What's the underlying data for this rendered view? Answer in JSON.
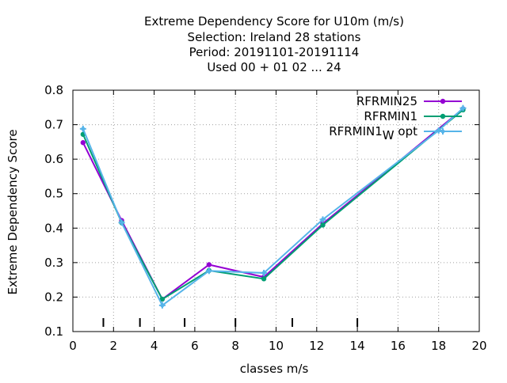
{
  "chart_data": {
    "type": "line",
    "title_lines": [
      "Extreme Dependency Score  for U10m (m/s)",
      "Selection: Ireland      28 stations",
      "Period: 20191101-20191114",
      "Used  00 + 01 02 ... 24"
    ],
    "xlabel": "classes m/s",
    "ylabel": "Extreme Dependency Score",
    "xlim": [
      0,
      20
    ],
    "ylim": [
      0.1,
      0.8
    ],
    "x_ticks": [
      0,
      2,
      4,
      6,
      8,
      10,
      12,
      14,
      16,
      18,
      20
    ],
    "y_ticks": [
      0.1,
      0.2,
      0.3,
      0.4,
      0.5,
      0.6,
      0.7,
      0.8
    ],
    "grid": true,
    "legend_position": "top-right",
    "class_boundary_marks": [
      1.5,
      3.3,
      5.5,
      8,
      10.8,
      14
    ],
    "series": [
      {
        "name": "RFRMIN25",
        "color": "#9400d3",
        "marker": "circle",
        "x": [
          0.5,
          2.4,
          4.4,
          6.7,
          9.4,
          12.3,
          19.2
        ],
        "y": [
          0.648,
          0.422,
          0.194,
          0.294,
          0.258,
          0.413,
          0.746
        ]
      },
      {
        "name": "RFRMIN1",
        "color": "#009e73",
        "marker": "circle",
        "x": [
          0.5,
          2.4,
          4.4,
          6.7,
          9.4,
          12.3,
          19.2
        ],
        "y": [
          0.672,
          0.416,
          0.194,
          0.277,
          0.253,
          0.409,
          0.743
        ]
      },
      {
        "name": "RFRMIN1",
        "name_subscript": "W",
        "name_suffix": "opt",
        "color": "#56b4e9",
        "marker": "cross",
        "x": [
          0.5,
          2.4,
          4.4,
          6.7,
          9.4,
          12.3,
          18.0,
          19.2
        ],
        "y": [
          0.688,
          0.416,
          0.176,
          0.276,
          0.27,
          0.425,
          0.683,
          0.748
        ]
      }
    ]
  }
}
